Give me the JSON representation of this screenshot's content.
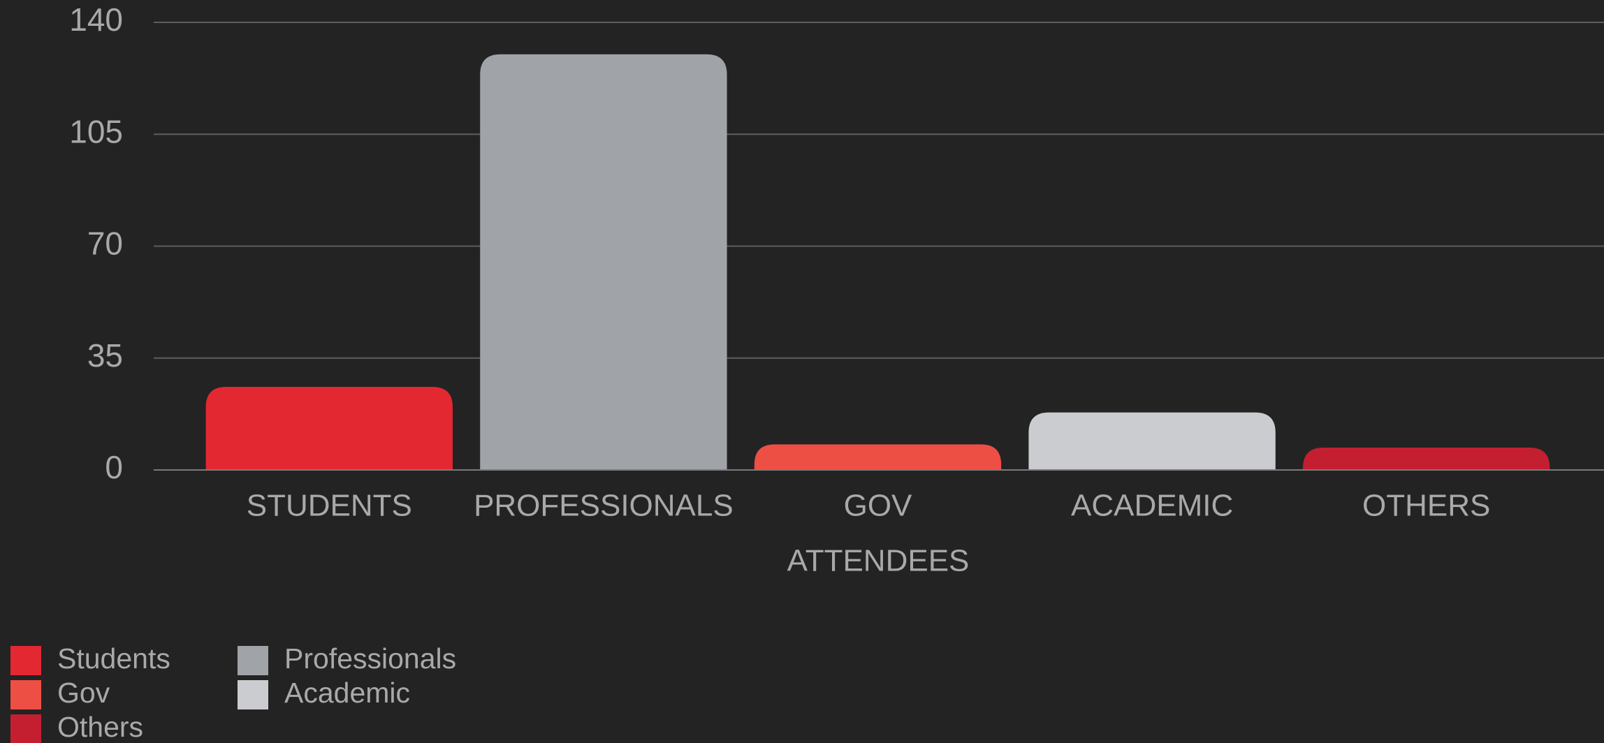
{
  "chart_data": {
    "type": "bar",
    "categories": [
      "STUDENTS",
      "PROFESSIONALS",
      "GOV",
      "ACADEMIC",
      "OTHERS"
    ],
    "values": [
      26,
      130,
      8,
      18,
      7
    ],
    "colors": [
      "#e32832",
      "#a0a3a7",
      "#ee4f45",
      "#cbccd0",
      "#c41f30"
    ],
    "legend": [
      "Students",
      "Professionals",
      "Gov",
      "Academic",
      "Others"
    ],
    "x_label": "ATTENDEES",
    "ylim": [
      0,
      140
    ],
    "yticks": [
      0,
      35,
      70,
      105,
      140
    ],
    "grid": true
  }
}
